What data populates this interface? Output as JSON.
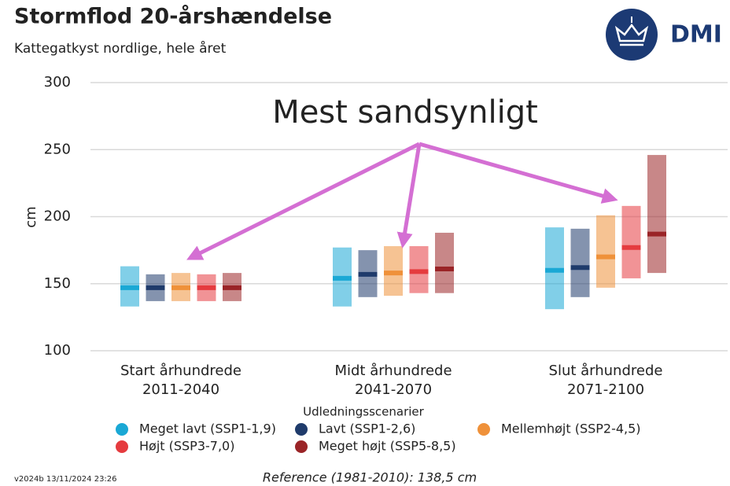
{
  "chart_data": {
    "type": "range",
    "title": "Stormflod 20-årshændelse",
    "subtitle": "Kattegatkyst nordlige, hele året",
    "logo": "DMI",
    "ylabel": "cm",
    "annotation": "Mest sandsynligt",
    "legend_title": "Udledningsscenarier",
    "note": "Reference (1981-2010): 138,5 cm",
    "version": "v2024b 13/11/2024 23:26",
    "categories": [
      [
        "Start århundrede",
        "2011-2040"
      ],
      [
        "Midt århundrede",
        "2041-2070"
      ],
      [
        "Slut århundrede",
        "2071-2100"
      ]
    ],
    "ylim": [
      100,
      300
    ],
    "yticks": [
      100,
      150,
      200,
      250,
      300
    ],
    "grid": true,
    "series": [
      {
        "name": "Meget lavt (SSP1-1,9)",
        "color": "#1aa8d5",
        "low": [
          133,
          133,
          131
        ],
        "median": [
          147,
          154,
          160
        ],
        "high": [
          163,
          177,
          192
        ]
      },
      {
        "name": "Lavt (SSP1-2,6)",
        "color": "#1f3b6b",
        "low": [
          137,
          140,
          140
        ],
        "median": [
          147,
          157,
          162
        ],
        "high": [
          157,
          175,
          191
        ]
      },
      {
        "name": "Mellemhøjt (SSP2-4,5)",
        "color": "#ef913a",
        "low": [
          137,
          141,
          147
        ],
        "median": [
          147,
          158,
          170
        ],
        "high": [
          158,
          178,
          201
        ]
      },
      {
        "name": "Højt (SSP3-7,0)",
        "color": "#e53b3f",
        "low": [
          137,
          143,
          154
        ],
        "median": [
          147,
          159,
          177
        ],
        "high": [
          157,
          178,
          208
        ]
      },
      {
        "name": "Meget højt (SSP5-8,5)",
        "color": "#9a2427",
        "low": [
          137,
          143,
          158
        ],
        "median": [
          147,
          161,
          187
        ],
        "high": [
          158,
          188,
          246
        ]
      }
    ]
  }
}
